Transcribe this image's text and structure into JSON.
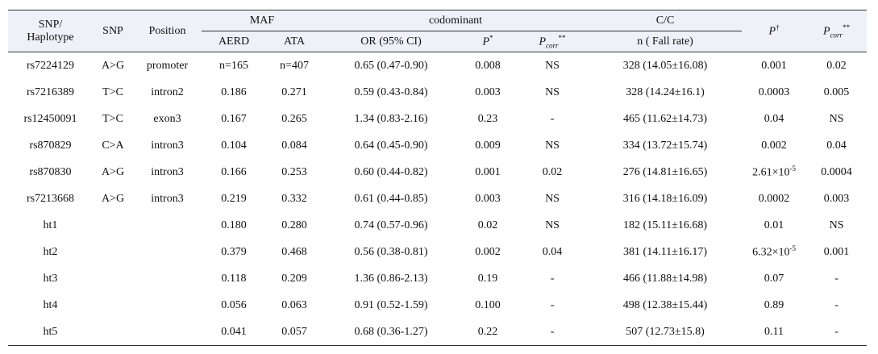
{
  "header": {
    "snp_haplotype": [
      "SNP/",
      "Haplotype"
    ],
    "snp": "SNP",
    "position": "Position",
    "maf": "MAF",
    "codominant": "codominant",
    "cc": "C/C",
    "p": {
      "main": "P",
      "sup": "†"
    },
    "pcorr": {
      "main": "P",
      "sub": "corr",
      "sup": "**"
    },
    "aerd": "AERD",
    "ata": "ATA",
    "or": "OR (95% CI)",
    "p_star": {
      "main": "P",
      "sup": "*"
    },
    "pcorr2": {
      "main": "P",
      "sub": "corr",
      "sup": "**"
    },
    "n": "n ( Fall rate)"
  },
  "rows": [
    [
      "rs7224129",
      "A>G",
      "promoter",
      "n=165",
      "n=407",
      "0.65 (0.47-0.90)",
      "0.008",
      "NS",
      "328 (14.05±16.08)",
      "0.001",
      "0.02"
    ],
    [
      "rs7216389",
      "T>C",
      "intron2",
      "0.186",
      "0.271",
      "0.59 (0.43-0.84)",
      "0.003",
      "NS",
      "328 (14.24±16.1)",
      "0.0003",
      "0.005"
    ],
    [
      "rs12450091",
      "T>C",
      "exon3",
      "0.167",
      "0.265",
      "1.34 (0.83-2.16)",
      "0.23",
      "-",
      "465 (11.62±14.73)",
      "0.04",
      "NS"
    ],
    [
      "rs870829",
      "C>A",
      "intron3",
      "0.104",
      "0.084",
      "0.64 (0.45-0.90)",
      "0.009",
      "NS",
      "334 (13.72±15.74)",
      "0.002",
      "0.04"
    ],
    [
      "rs870830",
      "A>G",
      "intron3",
      "0.166",
      "0.253",
      "0.60 (0.44-0.82)",
      "0.001",
      "0.02",
      "276 (14.81±16.65)",
      {
        "base": "2.61×10",
        "sup": "-5"
      },
      "0.0004"
    ],
    [
      "rs7213668",
      "A>G",
      "intron3",
      "0.219",
      "0.332",
      "0.61 (0.44-0.85)",
      "0.003",
      "NS",
      "316 (14.18±16.09)",
      "0.0002",
      "0.003"
    ],
    [
      "ht1",
      null,
      null,
      "0.180",
      "0.280",
      "0.74 (0.57-0.96)",
      "0.02",
      "NS",
      "182 (15.11±16.68)",
      "0.01",
      "NS"
    ],
    [
      "ht2",
      null,
      null,
      "0.379",
      "0.468",
      "0.56 (0.38-0.81)",
      "0.002",
      "0.04",
      "381 (14.11±16.17)",
      {
        "base": "6.32×10",
        "sup": "-5"
      },
      "0.001"
    ],
    [
      "ht3",
      null,
      null,
      "0.118",
      "0.209",
      "1.36 (0.86-2.13)",
      "0.19",
      "-",
      "466 (11.88±14.98)",
      "0.07",
      "-"
    ],
    [
      "ht4",
      null,
      null,
      "0.056",
      "0.063",
      "0.91 (0.52-1.59)",
      "0.100",
      "-",
      "498 (12.38±15.44)",
      "0.89",
      "-"
    ],
    [
      "ht5",
      null,
      null,
      "0.041",
      "0.057",
      "0.68 (0.36-1.27)",
      "0.22",
      "-",
      "507 (12.73±15.8)",
      "0.11",
      "-"
    ]
  ]
}
